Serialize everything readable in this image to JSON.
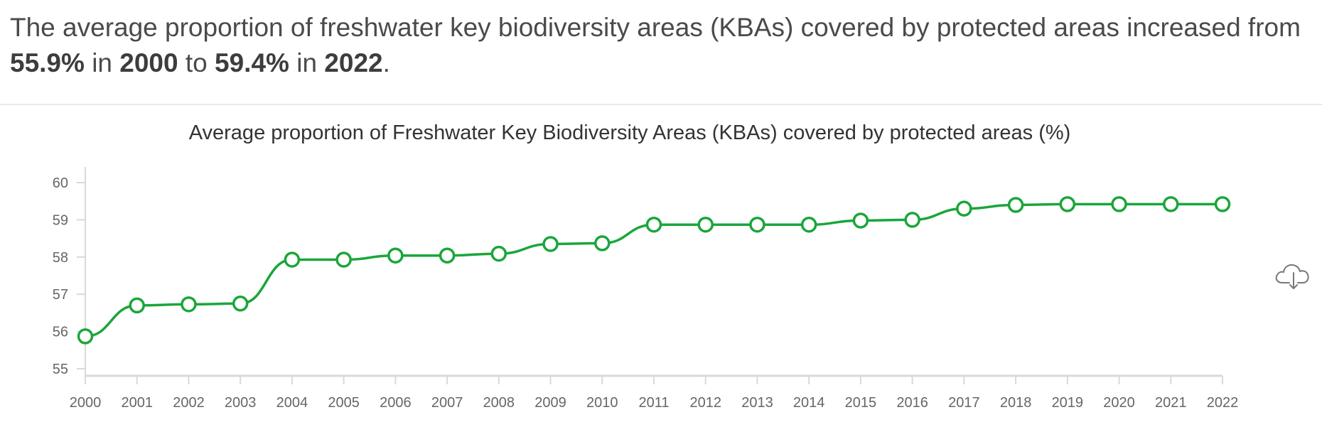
{
  "headline": {
    "part1": "The average proportion of freshwater key biodiversity areas (KBAs) covered by protected areas increased from ",
    "start_value": "55.9%",
    "part2": " in ",
    "start_year": "2000",
    "part3": " to ",
    "end_value": "59.4%",
    "part4": " in ",
    "end_year": "2022",
    "part5": "."
  },
  "toolbar": {
    "download_icon": "cloud-download-icon"
  },
  "colors": {
    "series": "#1aa63a",
    "axis": "#d9d9d9",
    "tick_text": "#666666",
    "title_text": "#333333"
  },
  "chart_data": {
    "type": "line",
    "title": "Average proportion of Freshwater Key Biodiversity Areas (KBAs) covered by protected areas (%)",
    "xlabel": "",
    "ylabel": "",
    "x": [
      "2000",
      "2001",
      "2002",
      "2003",
      "2004",
      "2005",
      "2006",
      "2007",
      "2008",
      "2009",
      "2010",
      "2011",
      "2012",
      "2013",
      "2014",
      "2015",
      "2016",
      "2017",
      "2018",
      "2019",
      "2020",
      "2021",
      "2022"
    ],
    "series": [
      {
        "values": [
          55.87,
          56.7,
          56.73,
          56.75,
          57.93,
          57.93,
          58.04,
          58.04,
          58.09,
          58.35,
          58.37,
          58.87,
          58.87,
          58.87,
          58.87,
          58.98,
          59.0,
          59.3,
          59.4,
          59.42,
          59.42,
          59.42,
          59.42
        ]
      }
    ],
    "yticks": [
      55,
      56,
      57,
      58,
      59,
      60
    ],
    "ylim": [
      55,
      60
    ],
    "grid": false,
    "legend": "none"
  }
}
